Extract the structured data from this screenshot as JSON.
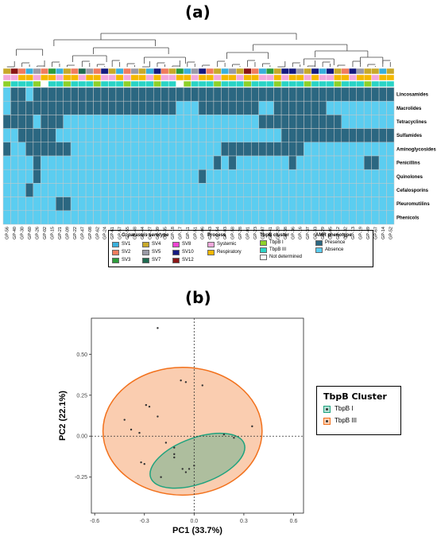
{
  "panel_a": {
    "label": "(a)",
    "rows": [
      "Lincosamides",
      "Macrolides",
      "Tetracyclines",
      "Sulfamides",
      "Aminoglycosides",
      "Penicillins",
      "Quinolones",
      "Cefalosporins",
      "Pleuromutilins",
      "Phenicols"
    ],
    "samples": [
      "GP-56",
      "GP-40",
      "GP-30",
      "GP-60",
      "GP-26",
      "GP-02",
      "GP-15",
      "GP-21",
      "GP-09",
      "GP-22",
      "GP-47",
      "GP-08",
      "GP-62",
      "GP-24",
      "GP-61",
      "GP-57",
      "GP-55",
      "GP-48",
      "GP-44",
      "GP-27",
      "GP-39",
      "GP-35",
      "GP-18",
      "GP-17",
      "GP-11",
      "GP-51",
      "GP-06",
      "GP-43",
      "GP-54",
      "GP-03",
      "GP-58",
      "GP-28",
      "GP-01",
      "GP-23",
      "GP-07",
      "GP-41",
      "GP-20",
      "GP-38",
      "GP-36",
      "GP-16",
      "GP-37",
      "GP-33",
      "GP-29",
      "GP-05",
      "GP-12",
      "GP-32",
      "GP-13",
      "GP-19",
      "GP-49",
      "GP-67",
      "GP-14",
      "GP-52"
    ],
    "legend": {
      "serotype_title": "G. parasuis serotype",
      "serotypes": [
        {
          "name": "SV1",
          "color": "#3ab0dc"
        },
        {
          "name": "SV2",
          "color": "#f07b5e"
        },
        {
          "name": "SV3",
          "color": "#2c9c3a"
        },
        {
          "name": "SV4",
          "color": "#c8a92a"
        },
        {
          "name": "SV5",
          "color": "#9a9aa6"
        },
        {
          "name": "SV7",
          "color": "#1e6b50"
        },
        {
          "name": "SV8",
          "color": "#ee44d2"
        },
        {
          "name": "SV10",
          "color": "#141a80"
        },
        {
          "name": "SV12",
          "color": "#8a1414"
        }
      ],
      "process_title": "Process",
      "processes": [
        {
          "name": "Systemic",
          "color": "#f3a8dc"
        },
        {
          "name": "Respiratory",
          "color": "#f5b800"
        }
      ],
      "tbpb_title": "TbpB cluster",
      "tbpb": [
        {
          "name": "TbpB I",
          "color": "#8ed12a"
        },
        {
          "name": "TbpB III",
          "color": "#2ad4c6"
        },
        {
          "name": "Not determined",
          "color": "#ffffff"
        }
      ],
      "amr_title": "AMR phenotype",
      "amr": [
        {
          "name": "Presence",
          "color": "#2b6781"
        },
        {
          "name": "Absence",
          "color": "#5bcdf0"
        }
      ]
    }
  },
  "panel_b": {
    "label": "(b)",
    "legend_title": "TbpB Cluster",
    "legend_items": [
      {
        "name": "TbpB I",
        "color": "#1fa37e"
      },
      {
        "name": "TbpB III",
        "color": "#f2711c"
      }
    ]
  },
  "chart_data": {
    "type": "scatter",
    "xlabel": "PC1 (33.7%)",
    "ylabel": "PC2 (22.1%)",
    "xlim": [
      -0.62,
      0.66
    ],
    "ylim": [
      -0.47,
      0.72
    ],
    "xticks": [
      -0.6,
      -0.3,
      0.0,
      0.3,
      0.6
    ],
    "xtick_labels": [
      "-0.6",
      "-0.3",
      "0.0",
      "0.3",
      "0.6"
    ],
    "yticks": [
      -0.25,
      0.0,
      0.25,
      0.5
    ],
    "ytick_labels": [
      "-0.25",
      "0.00",
      "0.25",
      "0.50"
    ],
    "series": [
      {
        "name": "TbpB I",
        "color": "#1fa37e",
        "x": [
          -0.12,
          -0.05,
          0.0,
          0.18,
          0.24,
          0.35
        ],
        "y": [
          -0.13,
          -0.22,
          -0.18,
          0.01,
          -0.01,
          0.06
        ]
      },
      {
        "name": "TbpB III",
        "color": "#f2711c",
        "x": [
          -0.22,
          -0.42,
          -0.38,
          -0.33,
          -0.29,
          -0.27,
          -0.22,
          -0.3,
          -0.32,
          -0.2,
          -0.17,
          -0.12,
          -0.08,
          -0.05,
          -0.03,
          0.05,
          -0.07,
          -0.12
        ],
        "y": [
          0.66,
          0.1,
          0.04,
          0.02,
          0.19,
          0.18,
          0.12,
          -0.17,
          -0.16,
          -0.25,
          -0.04,
          -0.07,
          0.34,
          0.33,
          -0.2,
          0.31,
          -0.2,
          -0.11
        ]
      }
    ],
    "ellipses": [
      {
        "series": "TbpB I",
        "cx": 0.02,
        "cy": -0.15,
        "rx": 0.3,
        "ry": 0.14,
        "angle_deg": 20
      },
      {
        "series": "TbpB III",
        "cx": -0.07,
        "cy": 0.03,
        "rx": 0.48,
        "ry": 0.39,
        "angle_deg": 0
      }
    ],
    "grid": false,
    "reference_lines": "dashed at x=0 and y=0",
    "legend_position": "right"
  }
}
